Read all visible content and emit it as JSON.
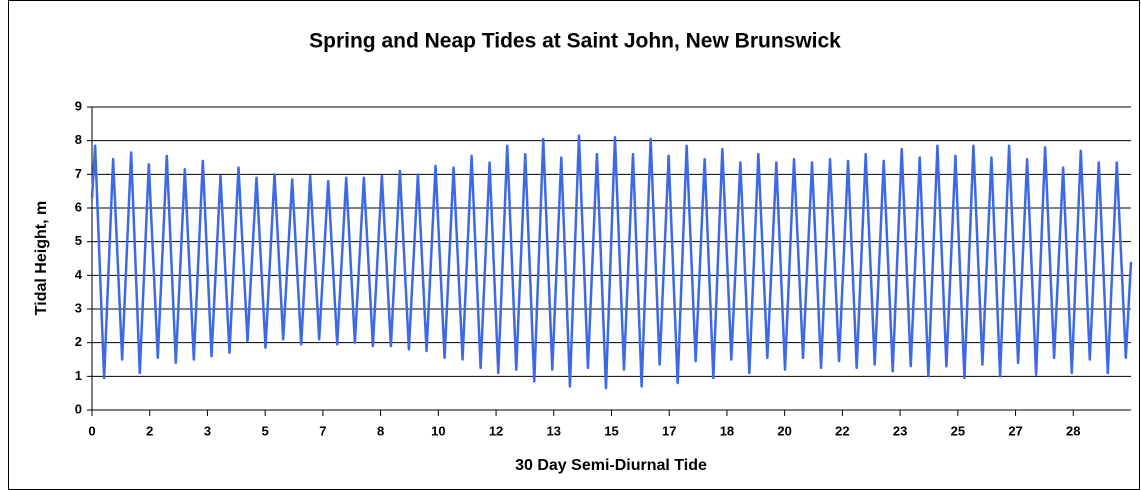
{
  "chart_data": {
    "type": "line",
    "title": "Spring and Neap Tides at Saint John, New Brunswick",
    "x_label": "30 Day Semi-Diurnal Tide",
    "y_label": "Tidal Height, m",
    "color": "#3d68e6",
    "grid": true,
    "xlim": [
      0,
      30
    ],
    "ylim": [
      0,
      9
    ],
    "yticks": [
      0,
      1,
      2,
      3,
      4,
      5,
      6,
      7,
      8,
      9
    ],
    "xticks": [
      0,
      {
        "value": 1.667,
        "label": "2"
      },
      {
        "value": 3.333,
        "label": "3"
      },
      5,
      {
        "value": 6.667,
        "label": "7"
      },
      {
        "value": 8.333,
        "label": "8"
      },
      10,
      {
        "value": 11.667,
        "label": "12"
      },
      {
        "value": 13.333,
        "label": "13"
      },
      15,
      {
        "value": 16.667,
        "label": "17"
      },
      {
        "value": 18.333,
        "label": "18"
      },
      20,
      {
        "value": 21.667,
        "label": "22"
      },
      {
        "value": 23.333,
        "label": "23"
      },
      25,
      {
        "value": 26.667,
        "label": "27"
      },
      {
        "value": 28.333,
        "label": "28"
      }
    ],
    "x": [
      0,
      0.09,
      0.35,
      0.61,
      0.87,
      1.13,
      1.38,
      1.64,
      1.9,
      2.16,
      2.42,
      2.68,
      2.94,
      3.2,
      3.45,
      3.71,
      3.97,
      4.23,
      4.49,
      4.75,
      5.01,
      5.27,
      5.52,
      5.78,
      6.04,
      6.3,
      6.56,
      6.82,
      7.08,
      7.34,
      7.59,
      7.85,
      8.11,
      8.37,
      8.63,
      8.89,
      9.15,
      9.41,
      9.66,
      9.92,
      10.18,
      10.44,
      10.7,
      10.96,
      11.22,
      11.48,
      11.73,
      11.99,
      12.25,
      12.51,
      12.77,
      13.03,
      13.29,
      13.55,
      13.8,
      14.06,
      14.32,
      14.58,
      14.84,
      15.1,
      15.36,
      15.62,
      15.87,
      16.13,
      16.39,
      16.65,
      16.91,
      17.17,
      17.43,
      17.69,
      17.94,
      18.2,
      18.46,
      18.72,
      18.98,
      19.24,
      19.5,
      19.76,
      20.01,
      20.27,
      20.53,
      20.79,
      21.05,
      21.31,
      21.57,
      21.83,
      22.08,
      22.34,
      22.6,
      22.86,
      23.12,
      23.38,
      23.64,
      23.9,
      24.15,
      24.41,
      24.67,
      24.93,
      25.19,
      25.45,
      25.71,
      25.97,
      26.22,
      26.48,
      26.74,
      27.0,
      27.26,
      27.52,
      27.78,
      28.04,
      28.29,
      28.55,
      28.81,
      29.07,
      29.33,
      29.59,
      29.85,
      30
    ],
    "values": [
      6.3,
      7.85,
      0.95,
      7.45,
      1.5,
      7.65,
      1.1,
      7.3,
      1.55,
      7.55,
      1.4,
      7.15,
      1.5,
      7.4,
      1.6,
      6.95,
      1.7,
      7.2,
      2.05,
      6.9,
      1.85,
      7.0,
      2.1,
      6.85,
      1.95,
      6.95,
      2.1,
      6.8,
      1.95,
      6.9,
      2.0,
      6.9,
      1.9,
      6.95,
      1.9,
      7.1,
      1.8,
      7.0,
      1.75,
      7.25,
      1.55,
      7.2,
      1.5,
      7.55,
      1.25,
      7.35,
      1.1,
      7.85,
      1.2,
      7.6,
      0.85,
      8.05,
      1.2,
      7.5,
      0.7,
      8.15,
      1.25,
      7.6,
      0.65,
      8.1,
      1.2,
      7.6,
      0.7,
      8.05,
      1.35,
      7.55,
      0.8,
      7.85,
      1.45,
      7.45,
      0.95,
      7.75,
      1.5,
      7.35,
      1.1,
      7.6,
      1.55,
      7.35,
      1.2,
      7.45,
      1.55,
      7.35,
      1.25,
      7.45,
      1.45,
      7.4,
      1.25,
      7.6,
      1.35,
      7.4,
      1.15,
      7.75,
      1.3,
      7.5,
      1.0,
      7.85,
      1.3,
      7.55,
      0.95,
      7.85,
      1.35,
      7.5,
      1.0,
      7.85,
      1.4,
      7.45,
      1.05,
      7.8,
      1.55,
      7.2,
      1.1,
      7.7,
      1.5,
      7.35,
      1.1,
      7.35,
      1.55,
      4.4
    ]
  }
}
